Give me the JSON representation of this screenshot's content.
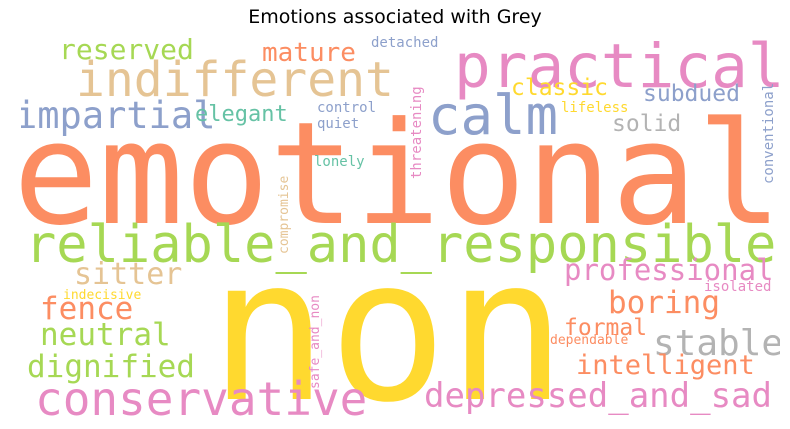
{
  "title": "Emotions associated with Grey",
  "words": [
    {
      "key": "emotional",
      "text": "emotional",
      "color": "#fc8d62"
    },
    {
      "key": "non",
      "text": "non",
      "color": "#ffd92f"
    },
    {
      "key": "reliable",
      "text": "reliable_and_responsible",
      "color": "#a6d854"
    },
    {
      "key": "indifferent",
      "text": "indifferent",
      "color": "#e5c494"
    },
    {
      "key": "practical",
      "text": "practical",
      "color": "#e78ac3"
    },
    {
      "key": "calm",
      "text": "calm",
      "color": "#8da0cb"
    },
    {
      "key": "conservative",
      "text": "conservative",
      "color": "#e78ac3"
    },
    {
      "key": "depressed",
      "text": "depressed_and_sad",
      "color": "#e78ac3"
    },
    {
      "key": "impartial",
      "text": "impartial",
      "color": "#8da0cb"
    },
    {
      "key": "reserved",
      "text": "reserved",
      "color": "#a6d854"
    },
    {
      "key": "mature",
      "text": "mature",
      "color": "#fc8d62"
    },
    {
      "key": "sitter",
      "text": "sitter",
      "color": "#e5c494"
    },
    {
      "key": "professional",
      "text": "professional",
      "color": "#e78ac3"
    },
    {
      "key": "boring",
      "text": "boring",
      "color": "#fc8d62"
    },
    {
      "key": "fence",
      "text": "fence",
      "color": "#fc8d62"
    },
    {
      "key": "neutral",
      "text": "neutral",
      "color": "#a6d854"
    },
    {
      "key": "dignified",
      "text": "dignified",
      "color": "#a6d854"
    },
    {
      "key": "stable",
      "text": "stable",
      "color": "#b3b3b3"
    },
    {
      "key": "intelligent",
      "text": "intelligent",
      "color": "#fc8d62"
    },
    {
      "key": "formal",
      "text": "formal",
      "color": "#fc8d62"
    },
    {
      "key": "classic",
      "text": "classic",
      "color": "#ffd92f"
    },
    {
      "key": "subdued",
      "text": "subdued",
      "color": "#8da0cb"
    },
    {
      "key": "solid",
      "text": "solid",
      "color": "#b3b3b3"
    },
    {
      "key": "elegant",
      "text": "elegant",
      "color": "#66c2a5"
    },
    {
      "key": "detached",
      "text": "detached",
      "color": "#8da0cb"
    },
    {
      "key": "control",
      "text": "control",
      "color": "#8da0cb"
    },
    {
      "key": "quiet",
      "text": "quiet",
      "color": "#8da0cb"
    },
    {
      "key": "lonely",
      "text": "lonely",
      "color": "#66c2a5"
    },
    {
      "key": "lifeless",
      "text": "lifeless",
      "color": "#ffd92f"
    },
    {
      "key": "isolated",
      "text": "isolated",
      "color": "#e78ac3"
    },
    {
      "key": "indecisive",
      "text": "indecisive",
      "color": "#ffd92f"
    },
    {
      "key": "dependable",
      "text": "dependable",
      "color": "#fc8d62"
    },
    {
      "key": "threatening",
      "text": "threatening",
      "color": "#e78ac3"
    },
    {
      "key": "compromise",
      "text": "compromise",
      "color": "#e5c494"
    },
    {
      "key": "safe",
      "text": "safe_and_non",
      "color": "#e78ac3"
    },
    {
      "key": "conventional",
      "text": "conventional",
      "color": "#8da0cb"
    }
  ]
}
